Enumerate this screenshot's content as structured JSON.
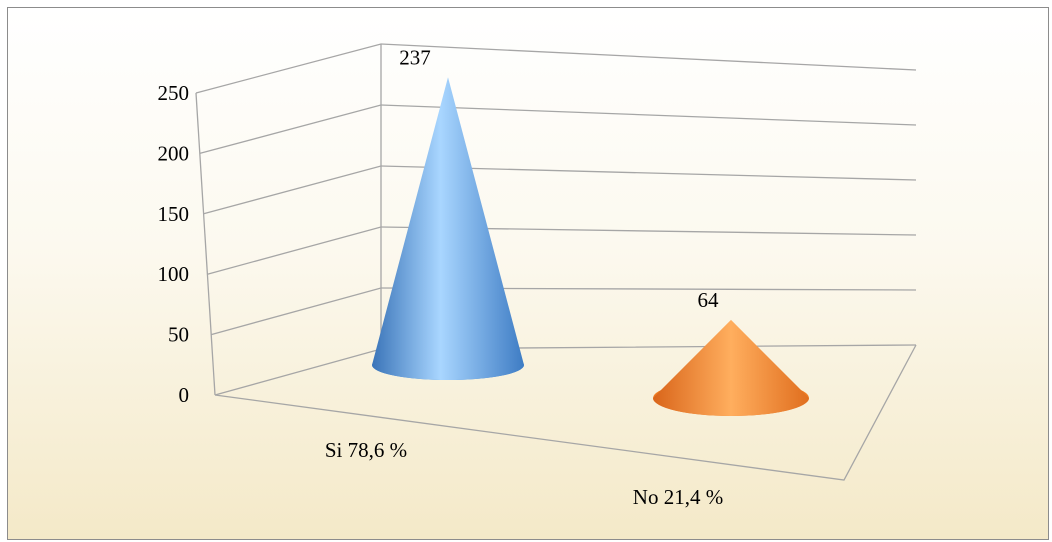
{
  "chart_data": {
    "type": "bar",
    "style": "3d-cone",
    "categories": [
      "Si 78,6 %",
      "No 21,4 %"
    ],
    "values": [
      237,
      64
    ],
    "data_labels": [
      "237",
      "64"
    ],
    "ylim": [
      0,
      250
    ],
    "yticks": [
      "0",
      "50",
      "100",
      "150",
      "200",
      "250"
    ],
    "grid": true,
    "legend": "none",
    "colors": {
      "cone_si": "#4e95d9",
      "cone_si_light": "#a9d6ff",
      "cone_no": "#f07d22",
      "cone_no_light": "#ffae5e",
      "grid": "#a6a6a6",
      "background_top": "#ffffff",
      "background_bottom": "#f4e9c8"
    }
  }
}
